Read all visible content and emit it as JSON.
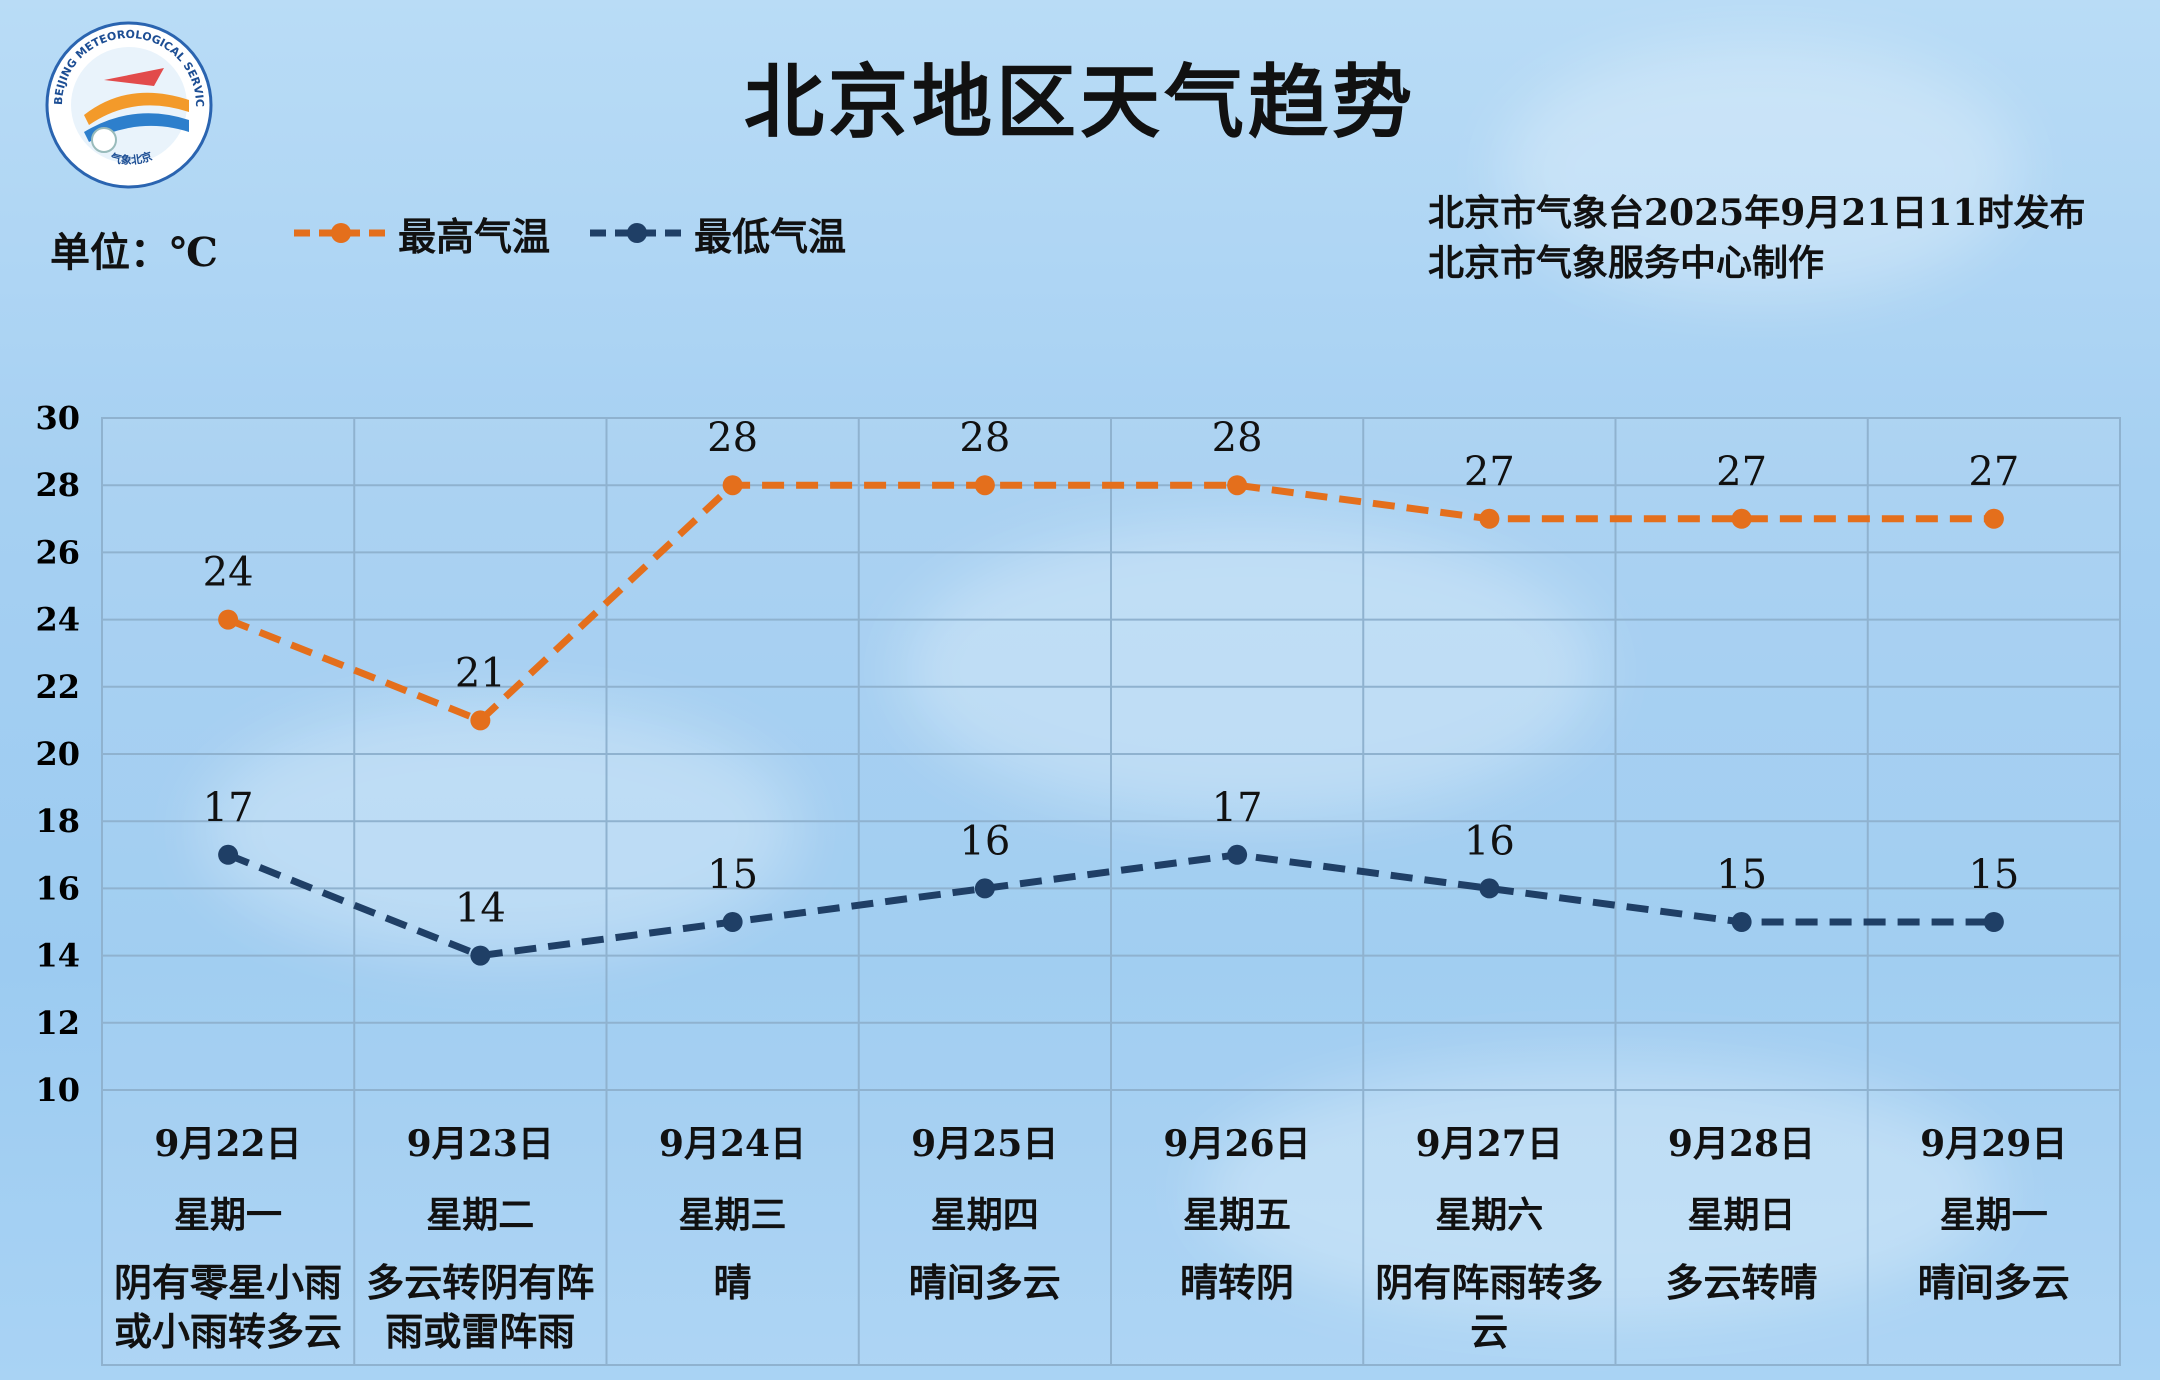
{
  "title": "北京地区天气趋势",
  "unit_label": "单位：℃",
  "publisher_line1": "北京市气象台2025年9月21日11时发布",
  "publisher_line2": "北京市气象服务中心制作",
  "logo": {
    "text_top": "BEIJING METEOROLOGICAL SERVICE",
    "text_bottom": "气象北京"
  },
  "colors": {
    "high": "#e46f1c",
    "low": "#1f3f66",
    "grid": "#8fb2cf"
  },
  "chart_data": {
    "type": "line",
    "ylim": [
      10,
      30
    ],
    "yticks": [
      10,
      12,
      14,
      16,
      18,
      20,
      22,
      24,
      26,
      28,
      30
    ],
    "grid": true,
    "legend": "top-left",
    "categories": [
      "9月22日",
      "9月23日",
      "9月24日",
      "9月25日",
      "9月26日",
      "9月27日",
      "9月28日",
      "9月29日"
    ],
    "weekdays": [
      "星期一",
      "星期二",
      "星期三",
      "星期四",
      "星期五",
      "星期六",
      "星期日",
      "星期一"
    ],
    "conditions": [
      [
        "阴有零星小雨",
        "或小雨转多云"
      ],
      [
        "多云转阴有阵",
        "雨或雷阵雨"
      ],
      [
        "晴"
      ],
      [
        "晴间多云"
      ],
      [
        "晴转阴"
      ],
      [
        "阴有阵雨转多",
        "云"
      ],
      [
        "多云转晴"
      ],
      [
        "晴间多云"
      ]
    ],
    "series": [
      {
        "name": "最高气温",
        "values": [
          24,
          21,
          28,
          28,
          28,
          27,
          27,
          27
        ]
      },
      {
        "name": "最低气温",
        "values": [
          17,
          14,
          15,
          16,
          17,
          16,
          15,
          15
        ]
      }
    ]
  }
}
